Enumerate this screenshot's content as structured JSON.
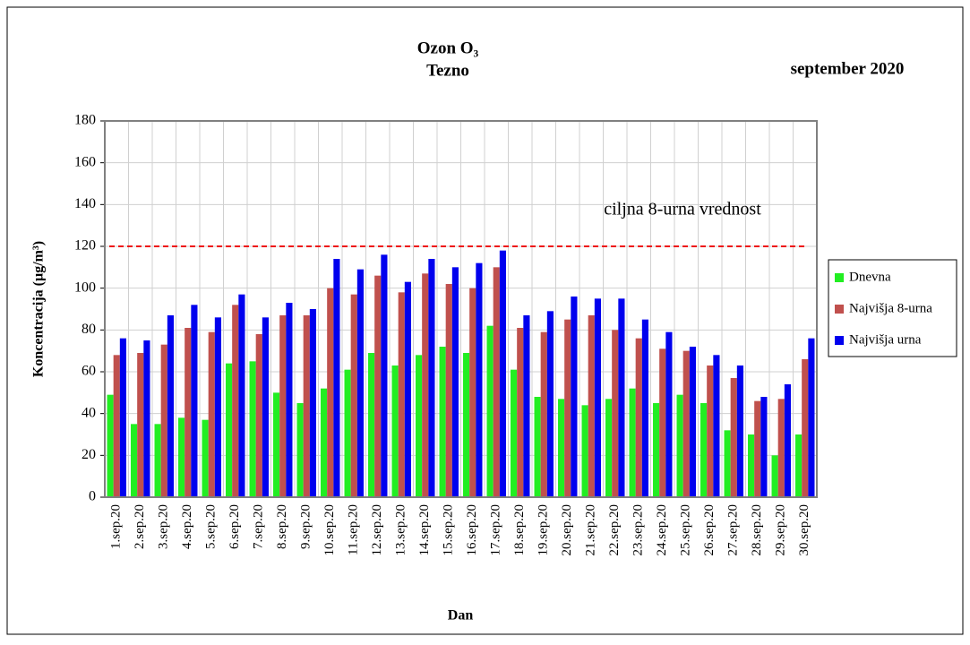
{
  "chart_data": {
    "type": "bar",
    "title": "Ozon O₃",
    "subtitle": "Tezno",
    "period": "september 2020",
    "x_label": "Dan",
    "y_label": "Koncentracija  (µg/m³)",
    "categories": [
      "1.sep.20",
      "2.sep.20",
      "3.sep.20",
      "4.sep.20",
      "5.sep.20",
      "6.sep.20",
      "7.sep.20",
      "8.sep.20",
      "9.sep.20",
      "10.sep.20",
      "11.sep.20",
      "12.sep.20",
      "13.sep.20",
      "14.sep.20",
      "15.sep.20",
      "16.sep.20",
      "17.sep.20",
      "18.sep.20",
      "19.sep.20",
      "20.sep.20",
      "21.sep.20",
      "22.sep.20",
      "23.sep.20",
      "24.sep.20",
      "25.sep.20",
      "26.sep.20",
      "27.sep.20",
      "28.sep.20",
      "29.sep.20",
      "30.sep.20"
    ],
    "series": [
      {
        "name": "Dnevna",
        "color": "#22ee22",
        "values": [
          49,
          35,
          35,
          38,
          37,
          64,
          65,
          50,
          45,
          52,
          61,
          69,
          63,
          68,
          72,
          69,
          82,
          61,
          48,
          47,
          44,
          47,
          52,
          45,
          49,
          45,
          32,
          30,
          20,
          30
        ]
      },
      {
        "name": "Najvišja 8-urna",
        "color": "#c0504d",
        "values": [
          68,
          69,
          73,
          81,
          79,
          92,
          78,
          87,
          87,
          100,
          97,
          106,
          98,
          107,
          102,
          100,
          110,
          81,
          79,
          85,
          87,
          80,
          76,
          71,
          70,
          63,
          57,
          46,
          47,
          66
        ]
      },
      {
        "name": "Najvišja urna",
        "color": "#0000ee",
        "values": [
          76,
          75,
          87,
          92,
          86,
          97,
          86,
          93,
          90,
          114,
          109,
          116,
          103,
          114,
          110,
          112,
          118,
          87,
          89,
          96,
          95,
          95,
          85,
          79,
          72,
          68,
          63,
          48,
          54,
          76
        ]
      }
    ],
    "threshold": {
      "value": 120,
      "label": "ciljna 8-urna vrednost",
      "color": "#ee1111"
    },
    "ylim": [
      0,
      180
    ],
    "yticks": [
      0,
      20,
      40,
      60,
      80,
      100,
      120,
      140,
      160,
      180
    ],
    "grid": true,
    "legend": "right"
  }
}
